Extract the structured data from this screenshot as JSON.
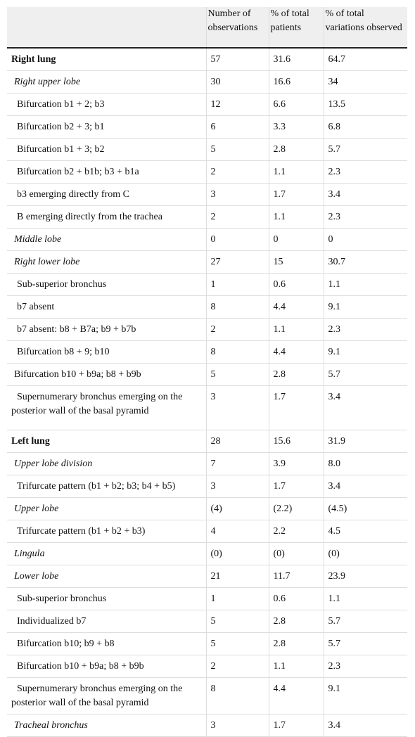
{
  "table": {
    "columns": [
      "Number of observations",
      "% of total patients",
      "% of total variations observed"
    ],
    "rows": [
      [
        "Right lung",
        "57",
        "31.6",
        "64.7"
      ],
      [
        "Right upper lobe",
        "30",
        "16.6",
        "34"
      ],
      [
        "Bifurcation b1 + 2; b3",
        "12",
        "6.6",
        "13.5"
      ],
      [
        "Bifurcation b2 + 3; b1",
        "6",
        "3.3",
        "6.8"
      ],
      [
        "Bifurcation b1 + 3; b2",
        "5",
        "2.8",
        "5.7"
      ],
      [
        "Bifurcation b2 + b1b; b3 + b1a",
        "2",
        "1.1",
        "2.3"
      ],
      [
        "b3 emerging directly from C",
        "3",
        "1.7",
        "3.4"
      ],
      [
        "B emerging directly from the trachea",
        "2",
        "1.1",
        "2.3"
      ],
      [
        "Middle lobe",
        "0",
        "0",
        "0"
      ],
      [
        "Right lower lobe",
        "27",
        "15",
        "30.7"
      ],
      [
        "Sub-superior bronchus",
        "1",
        "0.6",
        "1.1"
      ],
      [
        "b7 absent",
        "8",
        "4.4",
        "9.1"
      ],
      [
        "b7 absent: b8 + B7a; b9 + b7b",
        "2",
        "1.1",
        "2.3"
      ],
      [
        "Bifurcation b8 + 9; b10",
        "8",
        "4.4",
        "9.1"
      ],
      [
        "Bifurcation b10 + b9a; b8 + b9b",
        "5",
        "2.8",
        "5.7"
      ],
      [
        "Supernumerary bronchus emerging on the posterior wall of the basal pyramid",
        "3",
        "1.7",
        "3.4"
      ],
      [
        "Left lung",
        "28",
        "15.6",
        "31.9"
      ],
      [
        "Upper lobe division",
        "7",
        "3.9",
        "8.0"
      ],
      [
        "Trifurcate pattern (b1 + b2; b3; b4 + b5)",
        "3",
        "1.7",
        "3.4"
      ],
      [
        "Upper lobe",
        "(4)",
        "(2.2)",
        "(4.5)"
      ],
      [
        "Trifurcate pattern (b1 + b2 + b3)",
        "4",
        "2.2",
        "4.5"
      ],
      [
        "Lingula",
        "(0)",
        "(0)",
        "(0)"
      ],
      [
        "Lower lobe",
        "21",
        "11.7",
        "23.9"
      ],
      [
        "Sub-superior bronchus",
        "1",
        "0.6",
        "1.1"
      ],
      [
        "Individualized b7",
        "5",
        "2.8",
        "5.7"
      ],
      [
        "Bifurcation b10; b9 + b8",
        "5",
        "2.8",
        "5.7"
      ],
      [
        "Bifurcation b10 + b9a; b8 + b9b",
        "2",
        "1.1",
        "2.3"
      ],
      [
        "Supernumerary bronchus emerging on the posterior wall of the basal pyramid",
        "8",
        "4.4",
        "9.1"
      ],
      [
        "Tracheal bronchus",
        "3",
        "1.7",
        "3.4"
      ]
    ]
  }
}
